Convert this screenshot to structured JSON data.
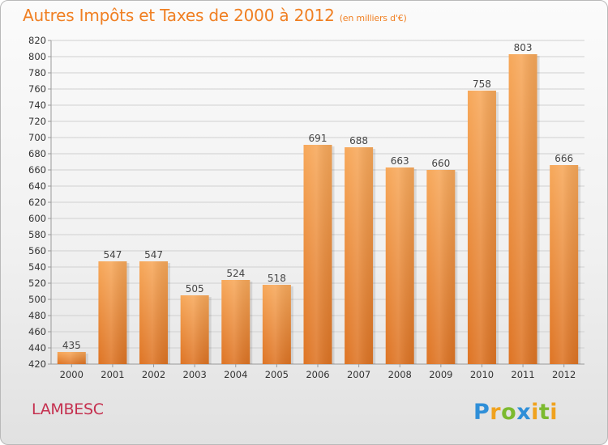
{
  "header": {
    "title": "Autres Impôts et Taxes de 2000 à 2012",
    "unit": "(en milliers d'€)"
  },
  "footer": {
    "town": "LAMBESC",
    "logo": "Proxiti"
  },
  "colors": {
    "title": "#f07f22",
    "town": "#c5304f",
    "bar_light": "#f7a85a",
    "bar_dark": "#de7424",
    "grid": "#cccccc"
  },
  "chart_data": {
    "type": "bar",
    "categories": [
      "2000",
      "2001",
      "2002",
      "2003",
      "2004",
      "2005",
      "2006",
      "2007",
      "2008",
      "2009",
      "2010",
      "2011",
      "2012"
    ],
    "values": [
      435,
      547,
      547,
      505,
      524,
      518,
      691,
      688,
      663,
      660,
      758,
      803,
      666
    ],
    "title": "Autres Impôts et Taxes de 2000 à 2012",
    "ylim": [
      420,
      820
    ],
    "yticks": [
      420,
      440,
      460,
      480,
      500,
      520,
      540,
      560,
      580,
      600,
      620,
      640,
      660,
      680,
      700,
      720,
      740,
      760,
      780,
      800,
      820
    ],
    "grid": true
  }
}
